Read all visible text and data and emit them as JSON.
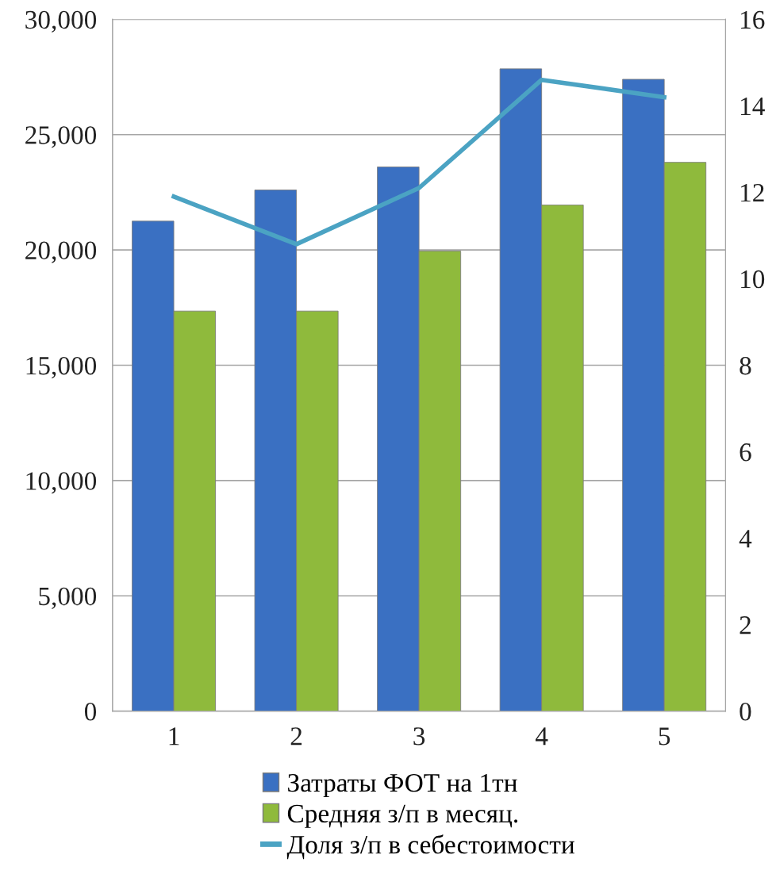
{
  "chart_data": {
    "type": "bar",
    "categories": [
      "1",
      "2",
      "3",
      "4",
      "5"
    ],
    "series": [
      {
        "name": "Затраты ФОТ на 1тн",
        "color": "#3a70c2",
        "values": [
          21250,
          22600,
          23600,
          27850,
          27400
        ]
      },
      {
        "name": "Средняя з/п в месяц.",
        "color": "#8fba3c",
        "values": [
          17350,
          17350,
          19950,
          21950,
          23800
        ]
      },
      {
        "name": "Доля з/п в себестоимости",
        "color": "#4ba3c3",
        "type": "line",
        "axis": "y2",
        "values": [
          11.9,
          10.8,
          12.1,
          14.6,
          14.2
        ]
      }
    ],
    "ylim": [
      0,
      30000
    ],
    "yticks": [
      {
        "value": 0,
        "label": "0"
      },
      {
        "value": 5000,
        "label": "5,000"
      },
      {
        "value": 10000,
        "label": "10,000"
      },
      {
        "value": 15000,
        "label": "15,000"
      },
      {
        "value": 20000,
        "label": "20,000"
      },
      {
        "value": 25000,
        "label": "25,000"
      },
      {
        "value": 30000,
        "label": "30,000"
      }
    ],
    "y2lim": [
      0,
      16
    ],
    "y2ticks": [
      0,
      2,
      4,
      6,
      8,
      10,
      12,
      14,
      16
    ],
    "grid": "y",
    "legend": "bottom",
    "marker": "none",
    "line_style": "solid"
  }
}
